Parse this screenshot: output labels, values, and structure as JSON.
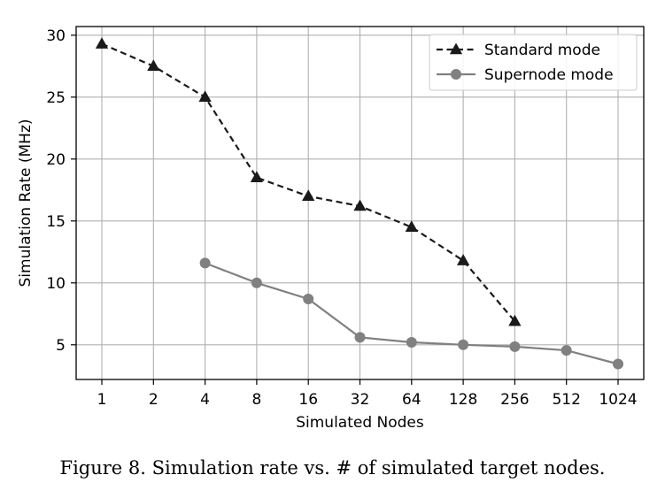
{
  "chart_data": {
    "type": "line",
    "x_scale": "log2",
    "categories": [
      "1",
      "2",
      "4",
      "8",
      "16",
      "32",
      "64",
      "128",
      "256",
      "512",
      "1024"
    ],
    "x": [
      1,
      2,
      4,
      8,
      16,
      32,
      64,
      128,
      256,
      512,
      1024
    ],
    "xlabel": "Simulated Nodes",
    "ylabel": "Simulation Rate (MHz)",
    "ylim": [
      2.2,
      30.7
    ],
    "yticks": [
      5,
      10,
      15,
      20,
      25,
      30
    ],
    "grid": true,
    "legend_position": "top-right",
    "series": [
      {
        "name": "Standard mode",
        "color": "#1a1a1a",
        "line_style": "dashed",
        "marker": "triangle",
        "x": [
          1,
          2,
          4,
          8,
          16,
          32,
          64,
          128,
          256
        ],
        "values": [
          29.3,
          27.5,
          25.0,
          18.5,
          17.0,
          16.2,
          14.5,
          11.8,
          6.9
        ]
      },
      {
        "name": "Supernode mode",
        "color": "#808080",
        "line_style": "solid",
        "marker": "circle",
        "x": [
          4,
          8,
          16,
          32,
          64,
          128,
          256,
          512,
          1024
        ],
        "values": [
          11.6,
          10.0,
          8.7,
          5.6,
          5.2,
          5.0,
          4.85,
          4.55,
          3.45
        ]
      }
    ]
  },
  "caption": "Figure 8.    Simulation rate vs. # of simulated target nodes."
}
